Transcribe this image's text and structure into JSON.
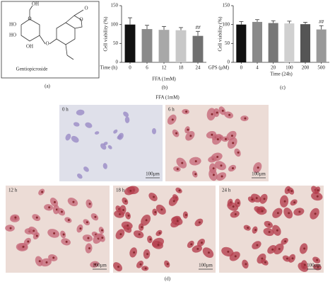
{
  "structure": {
    "name": "Gentiopicroside",
    "atoms": [
      "OH",
      "HO",
      "O",
      "HO",
      "OH",
      "O",
      "O",
      "O"
    ],
    "panel_label": "(a)"
  },
  "chart_data": [
    {
      "type": "bar",
      "y_label": "Cell viability (%)",
      "x_label": "Time (h)",
      "x_sublabel": "FFA (1mM)",
      "panel_label": "(b)",
      "categories": [
        "0",
        "6",
        "12",
        "18",
        "24"
      ],
      "values": [
        100,
        88,
        86,
        85,
        70
      ],
      "errors": [
        18,
        10,
        9,
        7,
        12
      ],
      "colors": [
        "#111111",
        "#8a8a8a",
        "#a8a8a8",
        "#c8c8c8",
        "#707070"
      ],
      "annotations": [
        null,
        null,
        null,
        null,
        "##"
      ],
      "ylim": [
        0,
        150
      ],
      "yticks": [
        0,
        50,
        100,
        150
      ]
    },
    {
      "type": "bar",
      "y_label": "Cell viability (%)",
      "x_label": "GPS (μM)",
      "x_sublabel": "Time (24h)",
      "panel_label": "(c)",
      "categories": [
        "0",
        "4",
        "20",
        "100",
        "200",
        "500"
      ],
      "values": [
        100,
        107,
        104,
        103,
        101,
        87
      ],
      "errors": [
        8,
        6,
        6,
        6,
        5,
        10
      ],
      "colors": [
        "#111111",
        "#8a8a8a",
        "#777777",
        "#d0d0d0",
        "#555555",
        "#999999"
      ],
      "annotations": [
        null,
        null,
        null,
        null,
        null,
        "##"
      ],
      "ylim": [
        0,
        150
      ],
      "yticks": [
        0,
        50,
        100,
        150
      ]
    }
  ],
  "micrographs": {
    "title": "FFA (1mM)",
    "panel_label": "(d)",
    "images": [
      {
        "label": "0 h",
        "scale": "100μm"
      },
      {
        "label": "6 h",
        "scale": "100μm"
      },
      {
        "label": "12 h",
        "scale": "100μm"
      },
      {
        "label": "18 h",
        "scale": "100μm"
      },
      {
        "label": "24 h",
        "scale": "100μm"
      }
    ]
  }
}
